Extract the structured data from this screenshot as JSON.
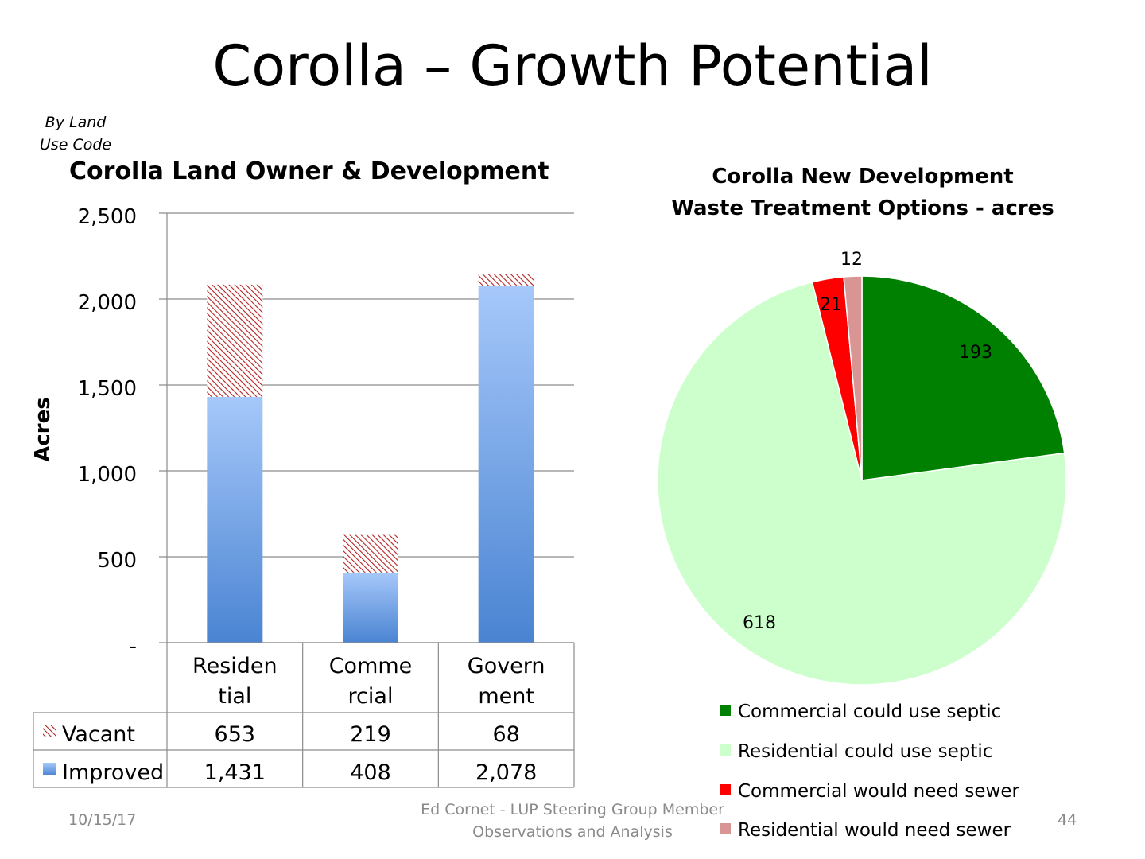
{
  "slide": {
    "title": "Corolla – Growth Potential",
    "subtitle_line1": "By Land",
    "subtitle_line2": "Use Code",
    "footer_date": "10/15/17",
    "footer_line1": "Ed Cornet - LUP Steering Group Member",
    "footer_line2": "Observations and Analysis",
    "page_number": "44"
  },
  "chart_data": [
    {
      "type": "bar",
      "stacked": true,
      "title": "Corolla Land Owner & Development",
      "ylabel": "Acres",
      "ylim": [
        0,
        2500
      ],
      "yticks": [
        0,
        500,
        1000,
        1500,
        2000,
        2500
      ],
      "ytick_labels": [
        "-",
        "500",
        "1,000",
        "1,500",
        "2,000",
        "2,500"
      ],
      "categories": [
        "Residential",
        "Commercial",
        "Government"
      ],
      "category_label_lines": [
        [
          "Residen",
          "tial"
        ],
        [
          "Comme",
          "rcial"
        ],
        [
          "Govern",
          "ment"
        ]
      ],
      "series": [
        {
          "name": "Vacant",
          "values": [
            653,
            219,
            68
          ],
          "labels": [
            "653",
            "219",
            "68"
          ],
          "pattern": "red-hatch"
        },
        {
          "name": "Improved",
          "values": [
            1431,
            408,
            2078
          ],
          "labels": [
            "1,431",
            "408",
            "2,078"
          ],
          "color": "#5b93e0"
        }
      ],
      "grid": true,
      "legend": "data-table"
    },
    {
      "type": "pie",
      "title_line1": "Corolla New Development",
      "title_line2": "Waste Treatment Options - acres",
      "slices": [
        {
          "name": "Commercial could use septic",
          "value": 193,
          "label": "193",
          "color": "#008000"
        },
        {
          "name": "Residential could use septic",
          "value": 618,
          "label": "618",
          "color": "#ccffcc"
        },
        {
          "name": "Commercial would need sewer",
          "value": 21,
          "label": "21",
          "color": "#ff0000"
        },
        {
          "name": "Residential would need sewer",
          "value": 12,
          "label": "12",
          "color": "#d99594"
        }
      ],
      "legend": "bottom"
    }
  ]
}
